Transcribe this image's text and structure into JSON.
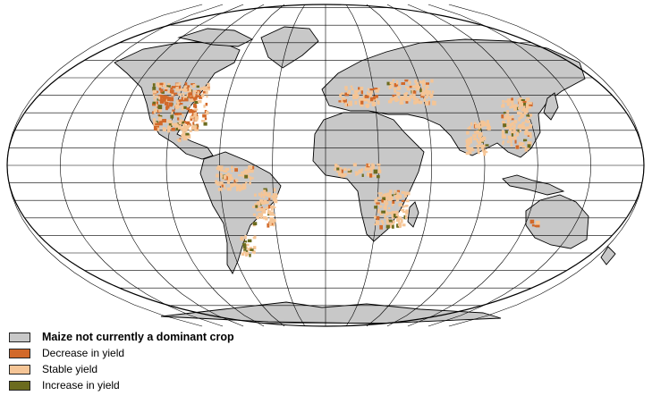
{
  "map": {
    "projection": "robinson",
    "colors": {
      "ocean": "#ffffff",
      "land": "#c8c8c8",
      "outline": "#000000",
      "graticule": "#000000",
      "decrease": "#d2692a",
      "stable": "#f5c596",
      "increase": "#6b6b1e"
    }
  },
  "legend": {
    "items": [
      {
        "label": "Maize not currently a dominant crop",
        "color": "#c8c8c8",
        "bold": true
      },
      {
        "label": "Decrease in yield",
        "color": "#d2692a",
        "bold": false
      },
      {
        "label": "Stable yield",
        "color": "#f5c596",
        "bold": false
      },
      {
        "label": "Increase in yield",
        "color": "#6b6b1e",
        "bold": false
      }
    ]
  }
}
